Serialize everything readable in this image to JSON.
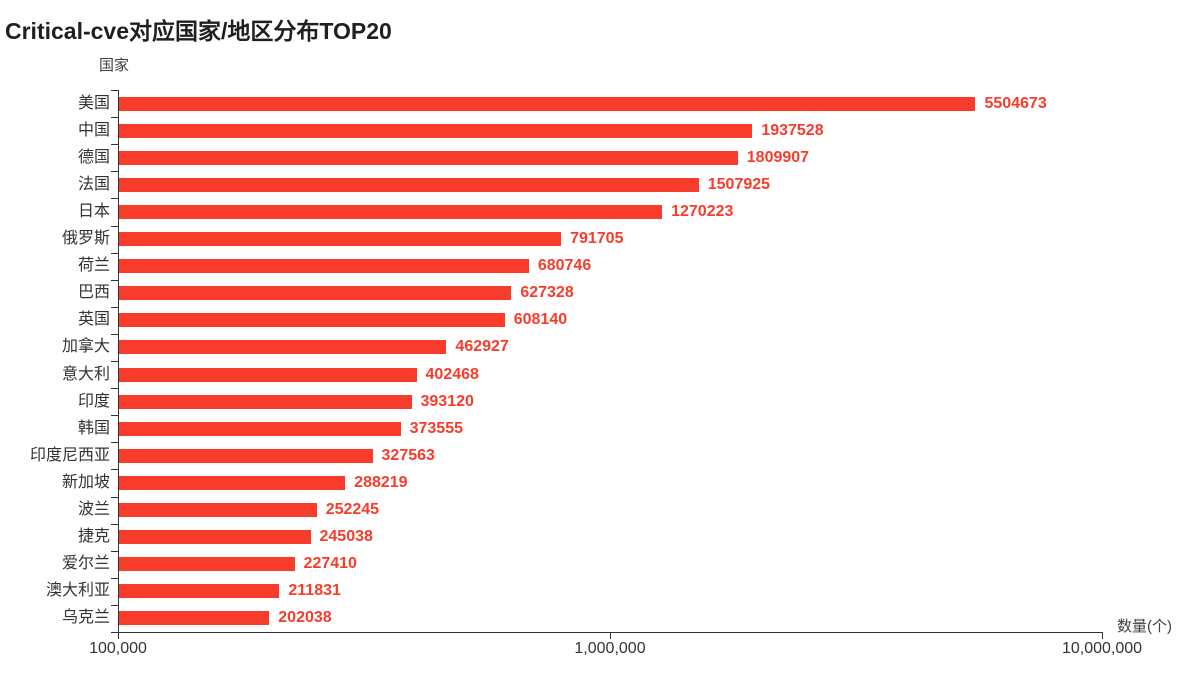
{
  "title": "Critical-cve对应国家/地区分布TOP20",
  "chart_data": {
    "type": "bar",
    "orientation": "horizontal",
    "title": "Critical-cve对应国家/地区分布TOP20",
    "xlabel": "数量(个)",
    "ylabel": "国家",
    "x_scale": "log",
    "xlim": [
      100000,
      10000000
    ],
    "x_ticks": [
      100000,
      1000000,
      10000000
    ],
    "x_tick_labels": [
      "100,000",
      "1,000,000",
      "10,000,000"
    ],
    "grid": false,
    "legend": false,
    "categories": [
      "美国",
      "中国",
      "德国",
      "法国",
      "日本",
      "俄罗斯",
      "荷兰",
      "巴西",
      "英国",
      "加拿大",
      "意大利",
      "印度",
      "韩国",
      "印度尼西亚",
      "新加坡",
      "波兰",
      "捷克",
      "爱尔兰",
      "澳大利亚",
      "乌克兰"
    ],
    "values": [
      5504673,
      1937528,
      1809907,
      1507925,
      1270223,
      791705,
      680746,
      627328,
      608140,
      462927,
      402468,
      393120,
      373555,
      327563,
      288219,
      252245,
      245038,
      227410,
      211831,
      202038
    ],
    "bar_color": "#f83c2b",
    "value_label_color": "#f83c2b",
    "axis_color": "#333333",
    "text_color": "#333333"
  }
}
